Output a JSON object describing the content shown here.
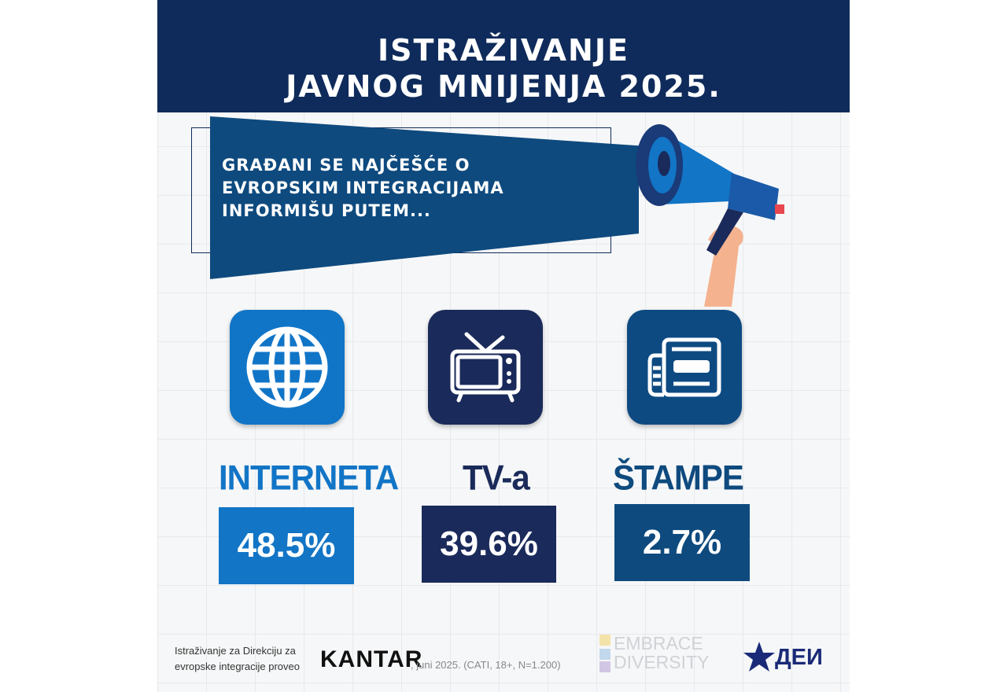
{
  "header": {
    "title_line1": "ISTRAŽIVANJE",
    "title_line2": "JAVNOG MNIJENJA 2025."
  },
  "banner": {
    "line1": "GRAĐANI SE NAJČEŠĆE O",
    "line2": "EVROPSKIM INTEGRACIJAMA",
    "line3": "INFORMIŠU PUTEM..."
  },
  "media": [
    {
      "label": "INTERNETA",
      "value": "48.5%",
      "icon": "globe-icon",
      "color": "#1275c6"
    },
    {
      "label": "TV-a",
      "value": "39.6%",
      "icon": "tv-icon",
      "color": "#1a2a5a"
    },
    {
      "label": "ŠTAMPE",
      "value": "2.7%",
      "icon": "newspaper-icon",
      "color": "#0e4a7e"
    }
  ],
  "footer": {
    "line1": "Istraživanje za Direkciju za",
    "line2": "evropske integracije proveo",
    "kantar": "KANTAR",
    "note": ", juni 2025. (CATI, 18+, N=1.200)",
    "embrace_line1": "EMBRACE",
    "embrace_line2": "DIVERSITY",
    "dei": "ДЕИ"
  },
  "colors": {
    "navy": "#0f2b5b",
    "blue": "#1275c6",
    "dark_blue": "#0e4a7e"
  }
}
